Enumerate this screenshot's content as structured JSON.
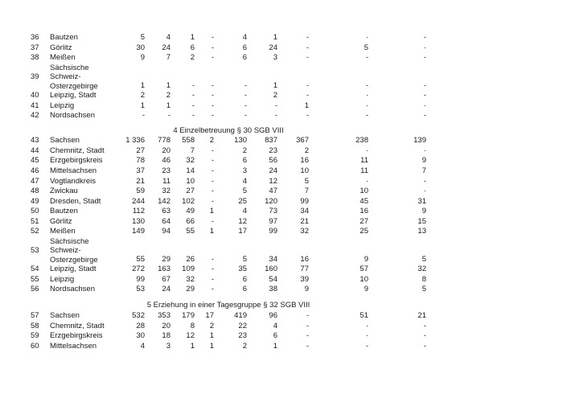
{
  "page": {
    "background_color": "#ffffff",
    "text_color": "#1a1a1a"
  },
  "table": {
    "sections": [
      {
        "header": null,
        "rows": [
          {
            "num": "36",
            "name": "Bautzen",
            "values": [
              "5",
              "4",
              "1",
              "-",
              "4",
              "1",
              "-",
              "·",
              "-"
            ]
          },
          {
            "num": "37",
            "name": "Görlitz",
            "values": [
              "30",
              "24",
              "6",
              "-",
              "6",
              "24",
              "-",
              "5",
              "·"
            ]
          },
          {
            "num": "38",
            "name": "Meißen",
            "values": [
              "9",
              "7",
              "2",
              "-",
              "6",
              "3",
              "-",
              "-",
              "-"
            ]
          },
          {
            "num": "39",
            "name": "Sächsische Schweiz-Osterzgebirge",
            "name_lines": [
              "Sächsische",
              "Schweiz-",
              "Osterzgebirge"
            ],
            "values": [
              "1",
              "1",
              "-",
              "-",
              "-",
              "1",
              "-",
              "-",
              "-"
            ]
          },
          {
            "num": "40",
            "name": "Leipzig, Stadt",
            "values": [
              "2",
              "2",
              "-",
              "-",
              "-",
              "2",
              "-",
              "·",
              "-"
            ]
          },
          {
            "num": "41",
            "name": "Leipzig",
            "values": [
              "1",
              "1",
              "-",
              "-",
              "-",
              "-",
              "1",
              "·",
              "·"
            ]
          },
          {
            "num": "42",
            "name": "Nordsachsen",
            "values": [
              "-",
              "-",
              "-",
              "-",
              "-",
              "-",
              "-",
              "-",
              "-"
            ]
          }
        ]
      },
      {
        "header": "4 Einzelbetreuung § 30 SGB VIII",
        "rows": [
          {
            "num": "43",
            "name": "Sachsen",
            "values": [
              "1 336",
              "778",
              "558",
              "2",
              "130",
              "837",
              "367",
              "238",
              "139"
            ]
          },
          {
            "num": "44",
            "name": "Chemnitz, Stadt",
            "values": [
              "27",
              "20",
              "7",
              "-",
              "2",
              "23",
              "2",
              "·",
              "·"
            ]
          },
          {
            "num": "45",
            "name": "Erzgebirgskreis",
            "values": [
              "78",
              "46",
              "32",
              "-",
              "6",
              "56",
              "16",
              "11",
              "9"
            ]
          },
          {
            "num": "46",
            "name": "Mittelsachsen",
            "values": [
              "37",
              "23",
              "14",
              "-",
              "3",
              "24",
              "10",
              "11",
              "7"
            ]
          },
          {
            "num": "47",
            "name": "Vogtlandkreis",
            "values": [
              "21",
              "11",
              "10",
              "-",
              "4",
              "12",
              "5",
              "·",
              "-"
            ]
          },
          {
            "num": "48",
            "name": "Zwickau",
            "values": [
              "59",
              "32",
              "27",
              "-",
              "5",
              "47",
              "7",
              "10",
              "·"
            ]
          },
          {
            "num": "49",
            "name": "Dresden, Stadt",
            "values": [
              "244",
              "142",
              "102",
              "-",
              "25",
              "120",
              "99",
              "45",
              "31"
            ]
          },
          {
            "num": "50",
            "name": "Bautzen",
            "values": [
              "112",
              "63",
              "49",
              "1",
              "4",
              "73",
              "34",
              "16",
              "9"
            ]
          },
          {
            "num": "51",
            "name": "Görlitz",
            "values": [
              "130",
              "64",
              "66",
              "-",
              "12",
              "97",
              "21",
              "27",
              "15"
            ]
          },
          {
            "num": "52",
            "name": "Meißen",
            "values": [
              "149",
              "94",
              "55",
              "1",
              "17",
              "99",
              "32",
              "25",
              "13"
            ]
          },
          {
            "num": "53",
            "name": "Sächsische Schweiz-Osterzgebirge",
            "name_lines": [
              "Sächsische",
              "Schweiz-",
              "Osterzgebirge"
            ],
            "values": [
              "55",
              "29",
              "26",
              "-",
              "5",
              "34",
              "16",
              "9",
              "5"
            ]
          },
          {
            "num": "54",
            "name": "Leipzig, Stadt",
            "values": [
              "272",
              "163",
              "109",
              "-",
              "35",
              "160",
              "77",
              "57",
              "32"
            ]
          },
          {
            "num": "55",
            "name": "Leipzig",
            "values": [
              "99",
              "67",
              "32",
              "-",
              "6",
              "54",
              "39",
              "10",
              "8"
            ]
          },
          {
            "num": "56",
            "name": "Nordsachsen",
            "values": [
              "53",
              "24",
              "29",
              "-",
              "6",
              "38",
              "9",
              "9",
              "5"
            ]
          }
        ]
      },
      {
        "header": "5 Erziehung in einer Tagesgruppe § 32 SGB VIII",
        "rows": [
          {
            "num": "57",
            "name": "Sachsen",
            "values": [
              "532",
              "353",
              "179",
              "17",
              "419",
              "96",
              "-",
              "51",
              "21"
            ]
          },
          {
            "num": "58",
            "name": "Chemnitz, Stadt",
            "values": [
              "28",
              "20",
              "8",
              "2",
              "22",
              "4",
              "-",
              "·",
              "-"
            ]
          },
          {
            "num": "59",
            "name": "Erzgebirgskreis",
            "values": [
              "30",
              "18",
              "12",
              "1",
              "23",
              "6",
              "-",
              "·",
              "-"
            ]
          },
          {
            "num": "60",
            "name": "Mittelsachsen",
            "values": [
              "4",
              "3",
              "1",
              "1",
              "2",
              "1",
              "-",
              "-",
              "-"
            ]
          }
        ]
      }
    ]
  }
}
